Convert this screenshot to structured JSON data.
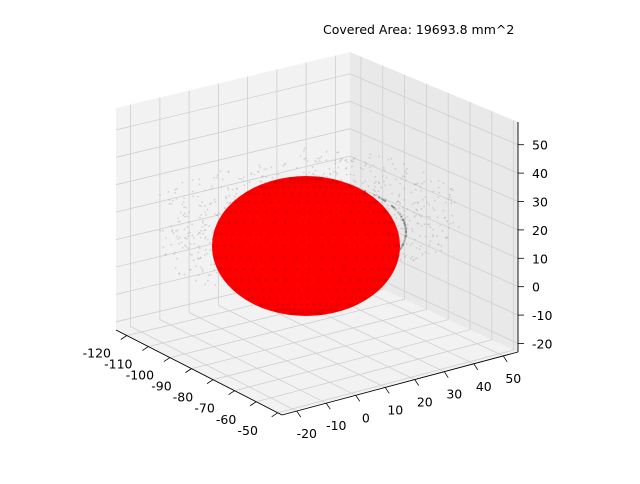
{
  "chart_data": {
    "type": "scatter",
    "projection": "3d",
    "annotation": "Covered Area: 19693.8 mm^2",
    "title": "",
    "xlabel": "",
    "ylabel": "",
    "zlabel": "",
    "grid": true,
    "x_ticks": [
      -120,
      -110,
      -100,
      -90,
      -80,
      -70,
      -60,
      -50
    ],
    "y_ticks": [
      -20,
      -10,
      0,
      10,
      20,
      30,
      40,
      50
    ],
    "z_ticks": [
      -20,
      -10,
      0,
      10,
      20,
      30,
      40,
      50
    ],
    "series": [
      {
        "marker_color": "#ff0000",
        "shape": "sphere",
        "center": {
          "x": -85,
          "y": 15,
          "z": 20
        },
        "radius": 33
      },
      {
        "marker_color": "#b0b0b0",
        "shape": "surface cloud"
      }
    ],
    "colors": {
      "pane": "#f2f2f2",
      "pane_side": "#e6e6e6",
      "grid": "#cfcfcf",
      "sphere": "#ff0000",
      "cloud": "#9a9a9a"
    }
  }
}
